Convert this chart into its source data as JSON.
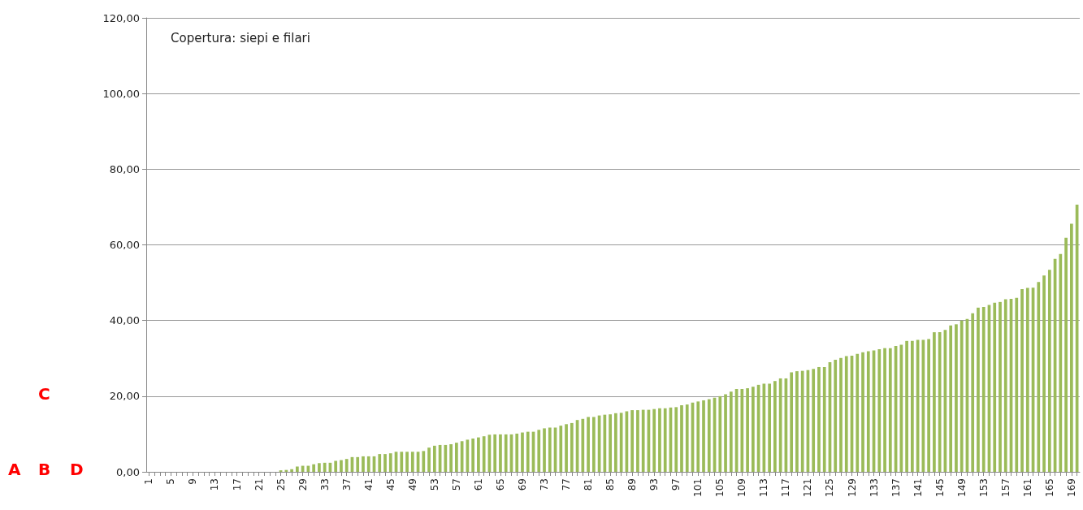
{
  "chart_data": {
    "type": "bar",
    "title": "Copertura: siepi e filari",
    "categories": [
      "1",
      null,
      null,
      null,
      "5",
      null,
      null,
      null,
      "9",
      null,
      null,
      null,
      "13",
      null,
      null,
      null,
      "17",
      null,
      null,
      null,
      "21",
      null,
      null,
      null,
      "25",
      null,
      null,
      null,
      "29",
      null,
      null,
      null,
      "33",
      null,
      null,
      null,
      "37",
      null,
      null,
      null,
      "41",
      null,
      null,
      null,
      "45",
      null,
      null,
      null,
      "49",
      null,
      null,
      null,
      "53",
      null,
      null,
      null,
      "57",
      null,
      null,
      null,
      "61",
      null,
      null,
      null,
      "65",
      null,
      null,
      null,
      "69",
      null,
      null,
      null,
      "73",
      null,
      null,
      null,
      "77",
      null,
      null,
      null,
      "81",
      null,
      null,
      null,
      "85",
      null,
      null,
      null,
      "89",
      null,
      null,
      null,
      "93",
      null,
      null,
      null,
      "97",
      null,
      null,
      null,
      "101",
      null,
      null,
      null,
      "105",
      null,
      null,
      null,
      "109",
      null,
      null,
      null,
      "113",
      null,
      null,
      null,
      "117",
      null,
      null,
      null,
      "121",
      null,
      null,
      null,
      "125",
      null,
      null,
      null,
      "129",
      null,
      null,
      null,
      "133",
      null,
      null,
      null,
      "137",
      null,
      null,
      null,
      "141",
      null,
      null,
      null,
      "145",
      null,
      null,
      null,
      "149",
      null,
      null,
      null,
      "153",
      null,
      null,
      null,
      "157",
      null,
      null,
      null,
      "161",
      null,
      null,
      null,
      "165",
      null,
      null,
      null,
      "169",
      null
    ],
    "values": [
      0,
      0,
      0,
      0,
      0,
      0,
      0,
      0,
      0,
      0,
      0,
      0,
      0,
      0,
      0,
      0,
      0,
      0,
      0,
      0,
      0,
      0,
      0,
      0,
      0.4,
      0.5,
      0.7,
      1.4,
      1.6,
      1.6,
      2.0,
      2.3,
      2.4,
      2.4,
      2.9,
      3.1,
      3.4,
      3.9,
      3.9,
      4.1,
      4.1,
      4.1,
      4.7,
      4.7,
      4.9,
      5.3,
      5.3,
      5.3,
      5.3,
      5.3,
      5.5,
      6.4,
      6.9,
      7.1,
      7.1,
      7.3,
      7.7,
      8.1,
      8.5,
      8.8,
      9.1,
      9.4,
      9.8,
      9.9,
      9.9,
      9.9,
      9.9,
      10.1,
      10.4,
      10.6,
      10.6,
      11.1,
      11.5,
      11.7,
      11.7,
      12.2,
      12.6,
      12.9,
      13.7,
      14.0,
      14.5,
      14.5,
      14.9,
      15.1,
      15.2,
      15.5,
      15.6,
      16.0,
      16.3,
      16.3,
      16.4,
      16.4,
      16.6,
      16.8,
      16.8,
      17.0,
      17.1,
      17.6,
      17.8,
      18.3,
      18.6,
      18.9,
      19.2,
      19.6,
      20.0,
      20.5,
      21.2,
      21.9,
      21.9,
      22.1,
      22.5,
      23.0,
      23.3,
      23.3,
      24.0,
      24.7,
      24.7,
      26.3,
      26.6,
      26.7,
      26.9,
      27.2,
      27.7,
      27.7,
      29.0,
      29.6,
      30.1,
      30.6,
      30.7,
      31.2,
      31.6,
      31.9,
      32.1,
      32.4,
      32.7,
      32.7,
      33.3,
      33.6,
      34.6,
      34.6,
      34.9,
      34.9,
      35.1,
      36.9,
      36.9,
      37.5,
      38.7,
      39.0,
      40.0,
      40.4,
      41.9,
      43.4,
      43.6,
      44.1,
      44.7,
      44.9,
      45.6,
      45.7,
      46.0,
      48.3,
      48.6,
      48.7,
      50.2,
      51.9,
      53.4,
      56.3,
      57.6,
      61.9,
      65.6,
      70.6
    ],
    "color": "#9bbb59",
    "ylim": [
      0,
      120
    ],
    "yticks": [
      {
        "value": 0,
        "label": "0,00"
      },
      {
        "value": 20,
        "label": "20,00"
      },
      {
        "value": 40,
        "label": "40,00"
      },
      {
        "value": 60,
        "label": "60,00"
      },
      {
        "value": 80,
        "label": "80,00"
      },
      {
        "value": 100,
        "label": "100,00"
      },
      {
        "value": 120,
        "label": "120,00"
      }
    ],
    "grid": "y",
    "annotations": [
      "A",
      "B",
      "C",
      "D"
    ]
  }
}
